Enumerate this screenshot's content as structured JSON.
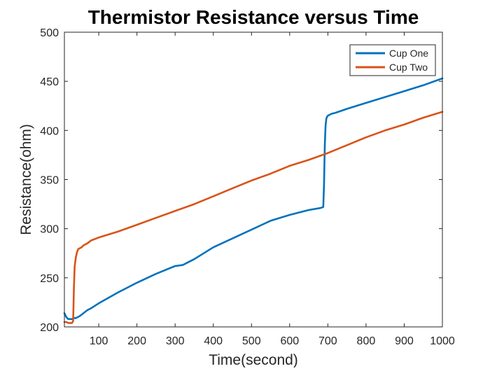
{
  "chart_data": {
    "type": "line",
    "title": "Thermistor Resistance versus Time",
    "xlabel": "Time(second)",
    "ylabel": "Resistance(ohm)",
    "xlim": [
      10,
      1000
    ],
    "ylim": [
      200,
      500
    ],
    "xticks": [
      100,
      200,
      300,
      400,
      500,
      600,
      700,
      800,
      900,
      1000
    ],
    "yticks": [
      200,
      250,
      300,
      350,
      400,
      450,
      500
    ],
    "grid": false,
    "legend_position": "top-right",
    "series": [
      {
        "name": "Cup One",
        "color": "#0072BD",
        "x": [
          10,
          15,
          20,
          25,
          30,
          35,
          40,
          45,
          50,
          60,
          70,
          80,
          100,
          150,
          200,
          250,
          300,
          320,
          330,
          350,
          400,
          450,
          500,
          550,
          600,
          650,
          680,
          688,
          690,
          692,
          694,
          696,
          698,
          700,
          705,
          710,
          720,
          750,
          800,
          850,
          900,
          950,
          1000
        ],
        "y": [
          214,
          210,
          208,
          208,
          208,
          209,
          209,
          210,
          211,
          214,
          217,
          219,
          224,
          235,
          245,
          254,
          262,
          263,
          265,
          269,
          281,
          290,
          299,
          308,
          314,
          319,
          321,
          322,
          345,
          385,
          405,
          412,
          414,
          415,
          416,
          417,
          418,
          422,
          428,
          434,
          440,
          446,
          453
        ]
      },
      {
        "name": "Cup Two",
        "color": "#D95319",
        "x": [
          10,
          15,
          20,
          25,
          30,
          33,
          35,
          37,
          40,
          43,
          46,
          50,
          55,
          60,
          70,
          80,
          100,
          150,
          200,
          250,
          300,
          350,
          400,
          450,
          500,
          550,
          600,
          650,
          700,
          750,
          800,
          850,
          900,
          950,
          1000
        ],
        "y": [
          205,
          205,
          204,
          204,
          204,
          206,
          240,
          262,
          271,
          276,
          279,
          280,
          281,
          283,
          285,
          288,
          291,
          297,
          304,
          311,
          318,
          325,
          333,
          341,
          349,
          356,
          364,
          370,
          377,
          385,
          393,
          400,
          406,
          413,
          419
        ]
      }
    ]
  }
}
